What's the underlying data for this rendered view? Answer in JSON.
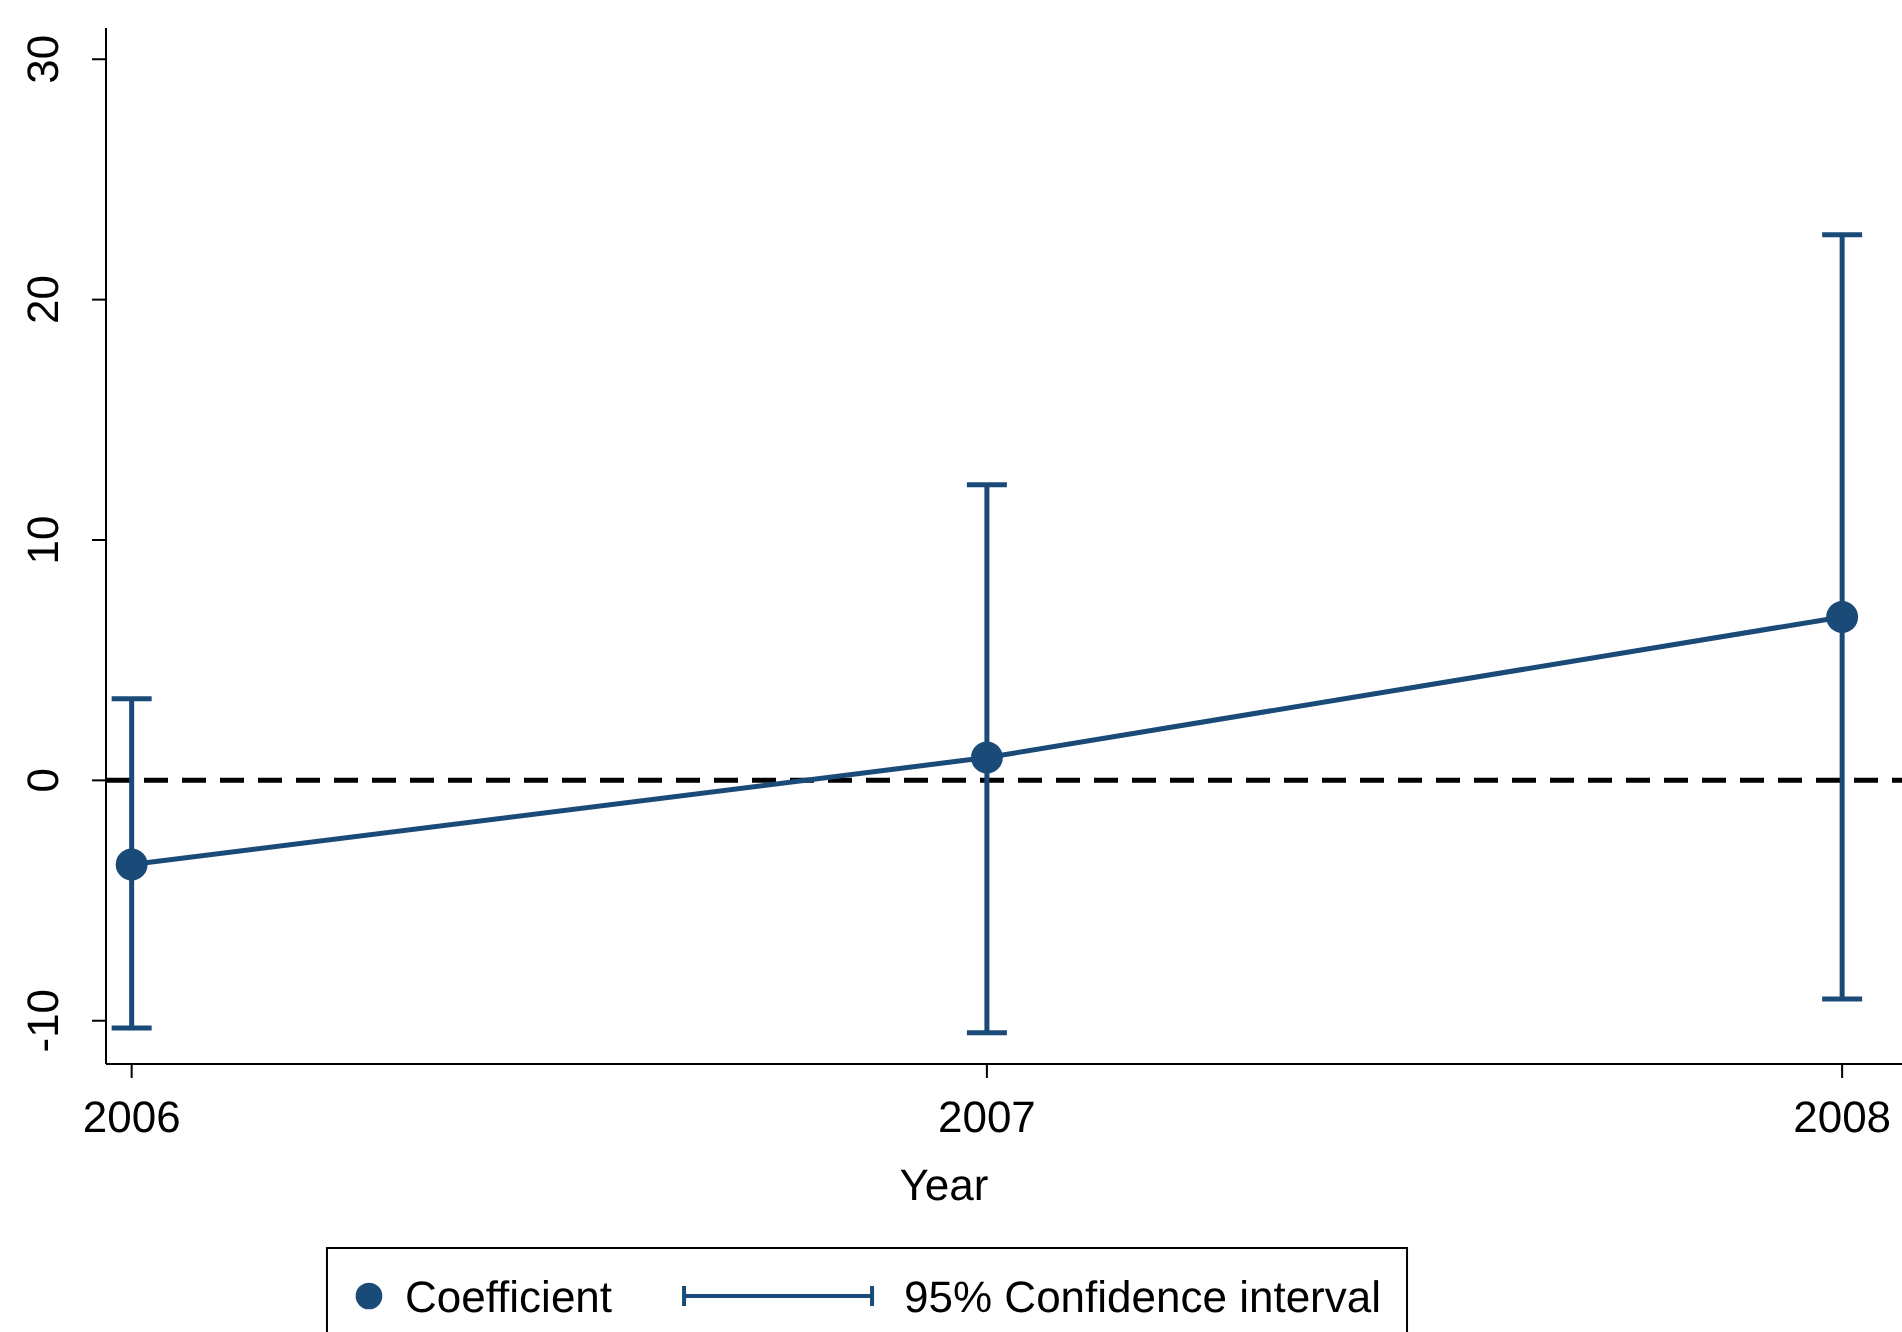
{
  "chart_data": {
    "type": "line",
    "xlabel": "Year",
    "x": [
      2006,
      2007,
      2008
    ],
    "series": [
      {
        "name": "Coefficient",
        "color": "#1a4a78",
        "values": [
          -3.5,
          0.95,
          6.8
        ],
        "errors": [
          [
            -10.3,
            3.4
          ],
          [
            -10.5,
            12.3
          ],
          [
            -9.1,
            22.7
          ]
        ]
      }
    ],
    "annotations": [
      "95% Confidence interval"
    ],
    "xlim": [
      2005.97,
      2008.07
    ],
    "xticks": [
      2006,
      2007,
      2008
    ],
    "ylim": [
      -11.8,
      31.3
    ],
    "yticks": [
      -10,
      0,
      10,
      20,
      30
    ],
    "ref_lines": [
      {
        "axis": "y",
        "value": 0,
        "color": "#000000",
        "line_style": "dashed"
      }
    ],
    "marker": "circle",
    "line_style": "solid",
    "grid": false,
    "legend": "bottom"
  }
}
